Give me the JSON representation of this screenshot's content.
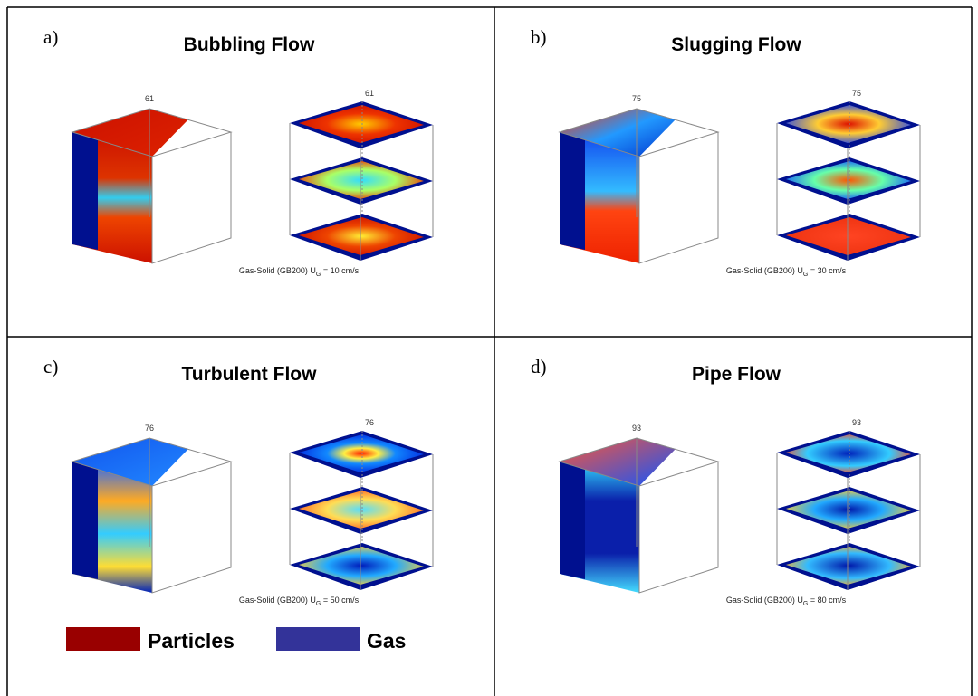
{
  "panels": [
    {
      "label": "a)",
      "title": "Bubbling Flow",
      "left_number": "61",
      "right_number": "61",
      "caption": {
        "text": "Gas-Solid (GB200) U",
        "subscript": "G",
        "suffix": " = 10 cm/s"
      }
    },
    {
      "label": "b)",
      "title": "Slugging Flow",
      "left_number": "75",
      "right_number": "75",
      "caption": {
        "text": "Gas-Solid (GB200) U",
        "subscript": "G",
        "suffix": " = 30 cm/s"
      }
    },
    {
      "label": "c)",
      "title": "Turbulent Flow",
      "left_number": "76",
      "right_number": "76",
      "caption": {
        "text": "Gas-Solid (GB200) U",
        "subscript": "G",
        "suffix": " = 50 cm/s"
      }
    },
    {
      "label": "d)",
      "title": "Pipe Flow",
      "left_number": "93",
      "right_number": "93",
      "caption": {
        "text": "Gas-Solid (GB200) U",
        "subscript": "G",
        "suffix": " = 80 cm/s"
      }
    }
  ],
  "legend": [
    {
      "label": "Particles",
      "color": "#990000"
    },
    {
      "label": "Gas",
      "color": "#333399"
    }
  ]
}
